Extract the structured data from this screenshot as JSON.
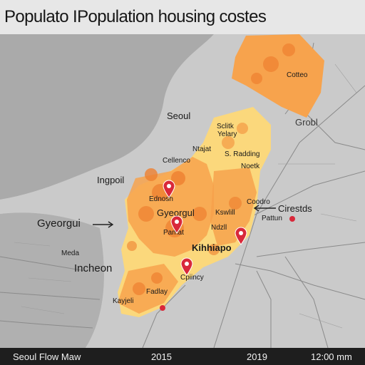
{
  "title": "Populato IPopulation housing costes",
  "footer": {
    "name": "Seoul Flow Maw",
    "year_start": "2015",
    "year_end": "2019",
    "time": "12:00 mm"
  },
  "labels": {
    "cotteo": "Cotteo",
    "seoul": "Seoul",
    "grobl": "Grobl",
    "sclitk": "Sclitk",
    "yelay": "Yelary",
    "ntajat": "Ntajat",
    "cellenco": "Cellenco",
    "s_radding": "S. Radding",
    "noetk": "Noetk",
    "ingpoil": "Ingpoil",
    "ednosh": "Ednosh",
    "gyeorgui_left": "Gyeorgui",
    "gyeorgul_center": "Gyeorgul",
    "coodro": "Coodro",
    "cirestds": "Cirestds",
    "kswlill": "Kswlill",
    "pattun": "Pattun",
    "pamat": "Pamat",
    "ndzll": "Ndzll",
    "kihhiapo": "Kihhiapo",
    "meda": "Meda",
    "incheon": "Incheon",
    "cpiincy": "Cpiincy",
    "fadlay": "Fadlay",
    "kayjeli": "Kayjeli"
  },
  "colors": {
    "land": "#c4c4c4",
    "water": "#a9a9a9",
    "region_yellow": "#fbd87c",
    "region_orange": "#f7a34d",
    "region_dark": "#ee7f2f",
    "pin": "#d9283a"
  },
  "icons": [
    "map-pin-icon",
    "arrow-left-icon"
  ]
}
